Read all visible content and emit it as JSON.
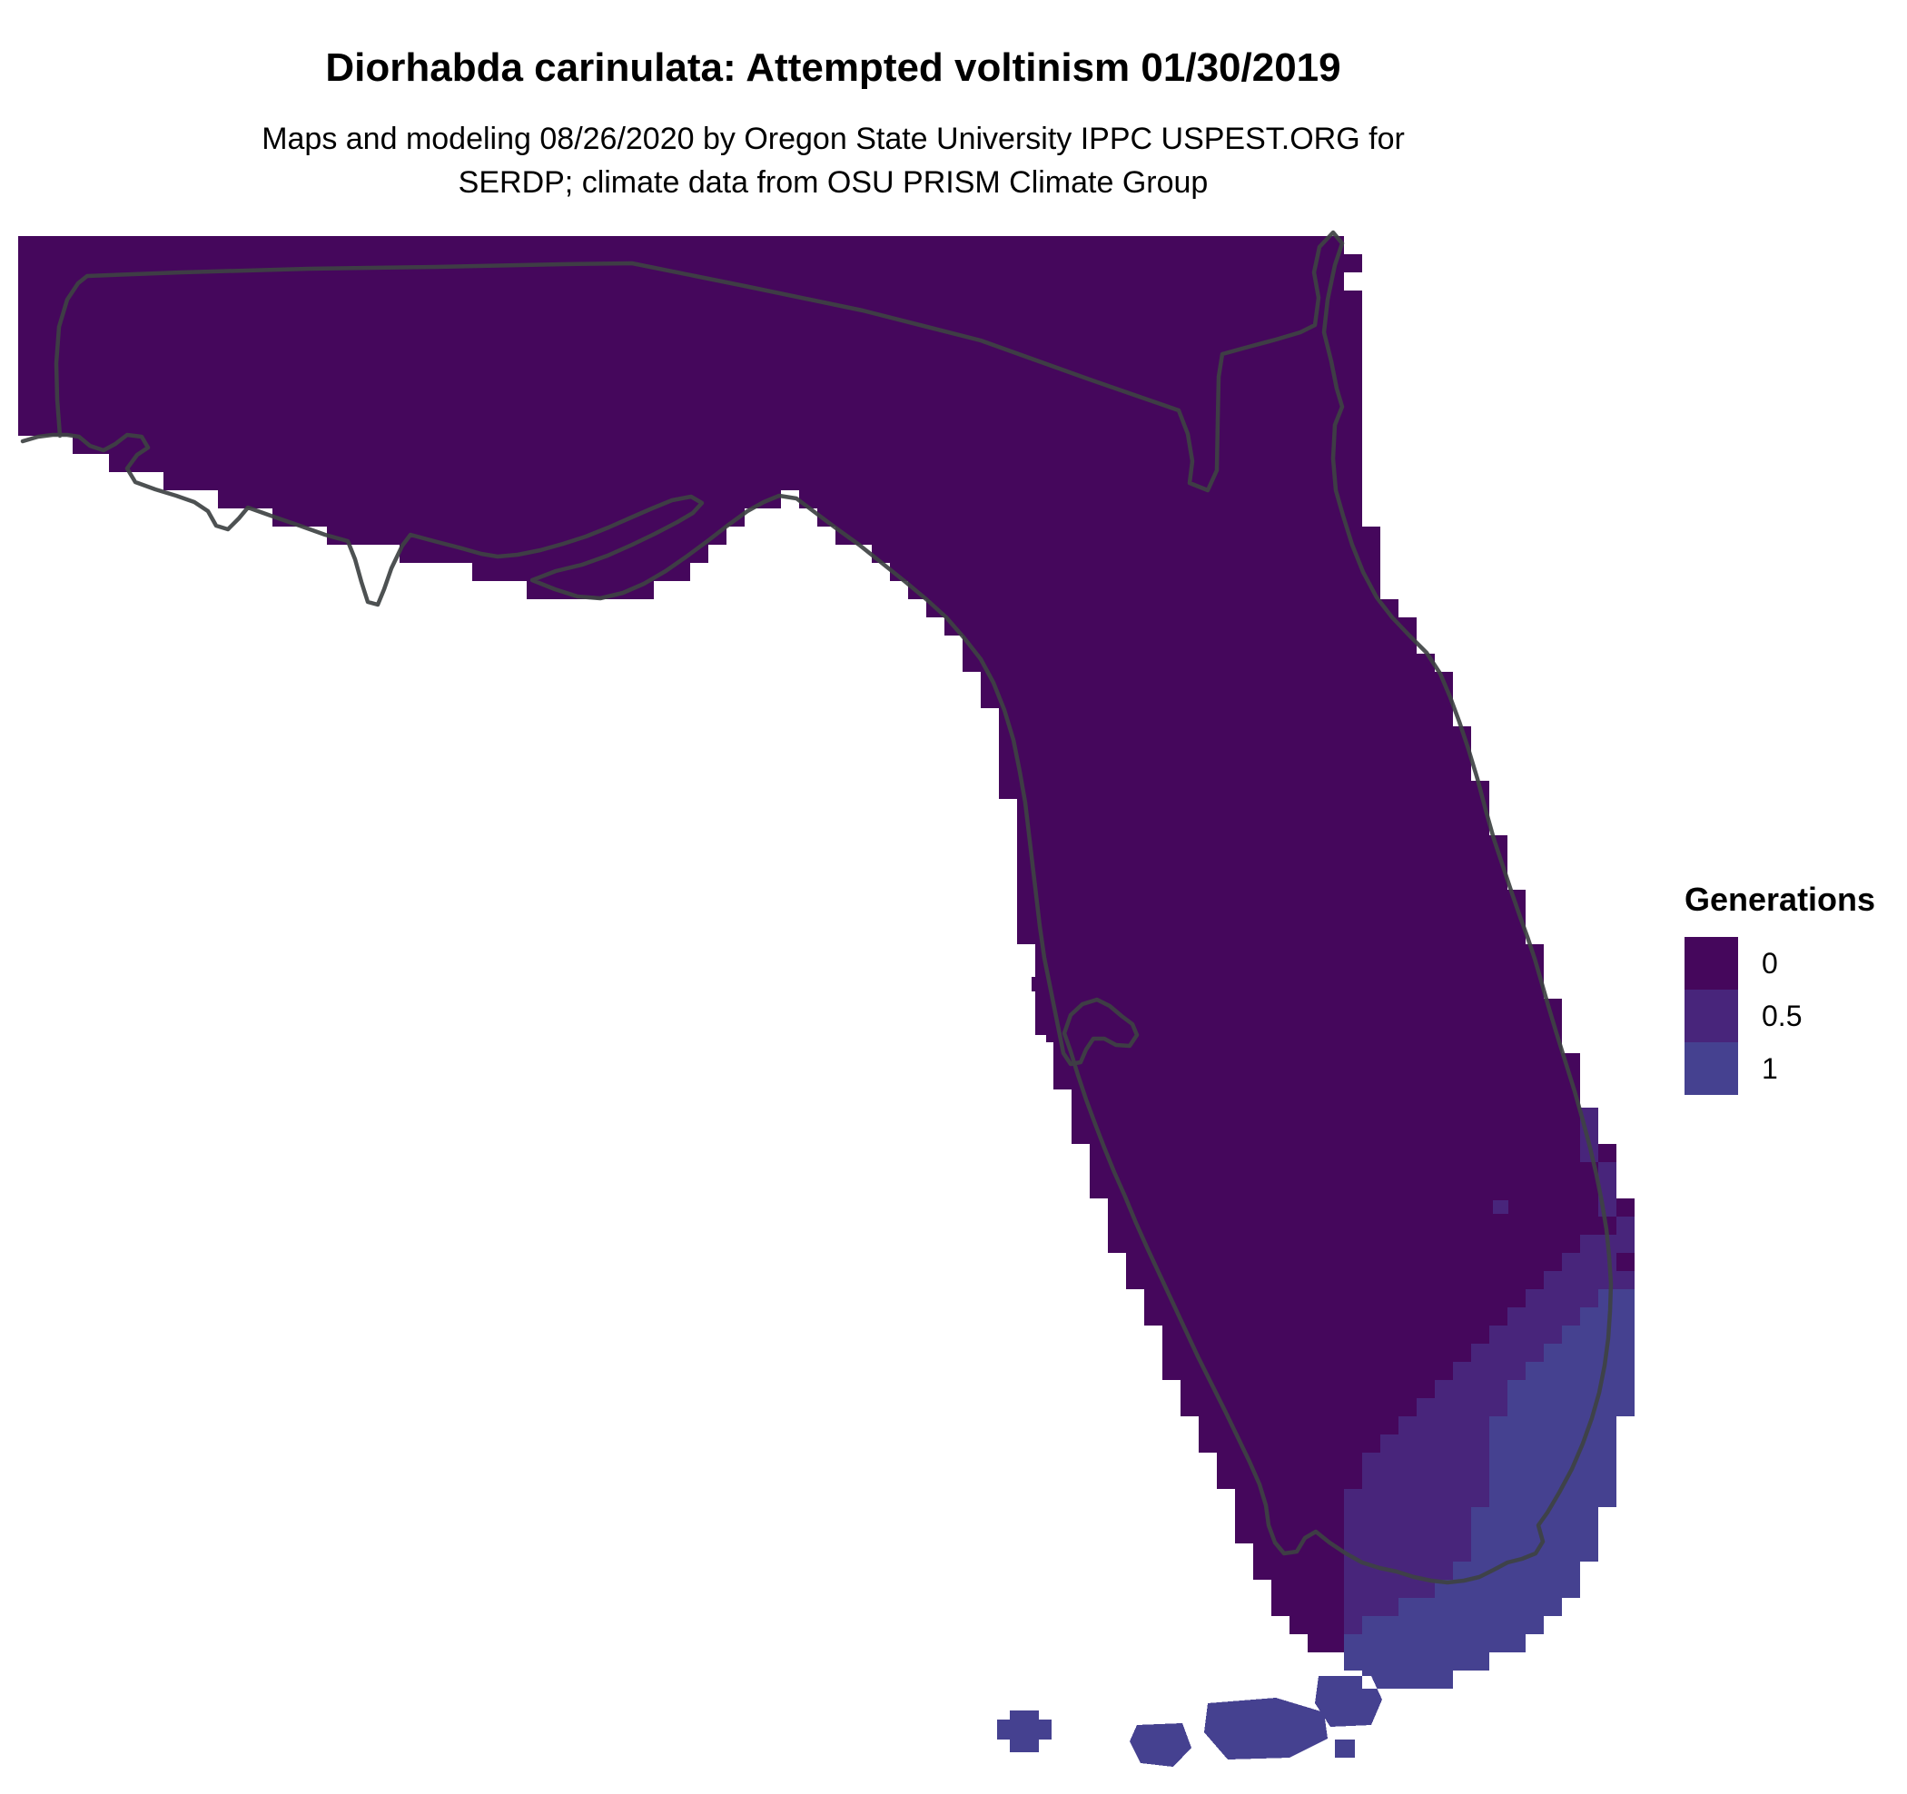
{
  "title": "Diorhabda carinulata: Attempted voltinism 01/30/2019",
  "subtitle_line1": "Maps and modeling 08/26/2020 by Oregon State University IPPC USPEST.ORG for",
  "subtitle_line2": "SERDP; climate data from OSU PRISM Climate Group",
  "legend": {
    "title": "Generations",
    "items": [
      {
        "label": "0",
        "color": "#45075c"
      },
      {
        "label": "0.5",
        "color": "#48257b"
      },
      {
        "label": "1",
        "color": "#454190"
      }
    ]
  },
  "map": {
    "region_name": "Florida",
    "border_color": "#3e4243",
    "background_color": "#ffffff"
  }
}
